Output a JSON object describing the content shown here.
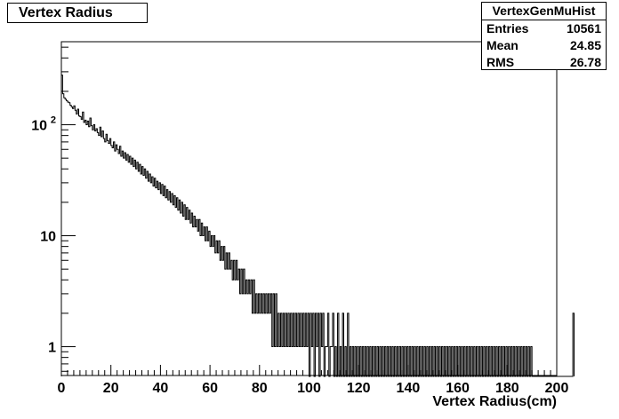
{
  "chart_data": {
    "type": "histogram",
    "title": "Vertex Radius",
    "xlabel": "Vertex Radius(cm)",
    "ylabel": "",
    "xlim": [
      0,
      200
    ],
    "ylim": [
      0.55,
      560
    ],
    "log_y": true,
    "grid": false,
    "x_ticks": [
      "0",
      "20",
      "40",
      "60",
      "80",
      "100",
      "120",
      "140",
      "160",
      "180",
      "200"
    ],
    "y_ticks": [
      {
        "value": 1,
        "label": "1"
      },
      {
        "value": 10,
        "label": "10"
      },
      {
        "value": 100,
        "label": "10",
        "exponent": "2"
      }
    ],
    "bin_width": 0.5,
    "bin_start": 0,
    "series": [
      {
        "values": [
          280,
          190,
          175,
          170,
          165,
          160,
          158,
          150,
          145,
          140,
          148,
          135,
          125,
          138,
          120,
          118,
          112,
          130,
          105,
          110,
          100,
          108,
          96,
          115,
          98,
          90,
          100,
          88,
          92,
          85,
          80,
          95,
          78,
          88,
          75,
          70,
          82,
          72,
          68,
          75,
          65,
          62,
          70,
          58,
          66,
          60,
          55,
          64,
          52,
          58,
          50,
          56,
          48,
          54,
          46,
          52,
          44,
          50,
          42,
          48,
          40,
          46,
          38,
          44,
          36,
          42,
          35,
          40,
          33,
          38,
          31,
          36,
          30,
          34,
          28,
          33,
          27,
          31,
          26,
          30,
          24,
          29,
          23,
          28,
          22,
          26,
          21,
          25,
          20,
          24,
          19,
          23,
          18,
          22,
          17,
          21,
          16,
          20,
          15,
          19,
          14,
          18,
          14,
          17,
          13,
          16,
          12,
          15,
          12,
          14,
          11,
          14,
          10,
          13,
          10,
          12,
          9,
          12,
          9,
          11,
          8,
          10,
          8,
          10,
          7,
          9,
          7,
          9,
          6,
          8,
          6,
          8,
          5,
          7,
          5,
          7,
          5,
          6,
          4,
          6,
          4,
          6,
          4,
          5,
          3,
          5,
          3,
          5,
          3,
          4,
          3,
          4,
          3,
          4,
          2,
          4,
          2,
          3,
          2,
          3,
          2,
          3,
          2,
          3,
          2,
          3,
          2,
          3,
          2,
          3,
          1,
          3,
          1,
          3,
          1,
          2,
          1,
          2,
          1,
          2,
          1,
          2,
          1,
          2,
          1,
          2,
          1,
          2,
          1,
          2,
          1,
          2,
          1,
          2,
          1,
          2,
          1,
          2,
          1,
          2,
          0,
          2,
          1,
          2,
          0,
          2,
          1,
          2,
          0,
          2,
          1,
          2,
          0,
          1,
          1,
          2,
          0,
          1,
          1,
          2,
          0,
          1,
          0,
          2,
          0,
          1,
          0,
          2,
          0,
          1,
          0,
          2,
          0,
          1,
          0,
          1,
          0,
          1,
          0,
          1,
          0,
          1,
          0,
          1,
          0,
          1,
          0,
          1,
          0,
          1,
          0,
          1,
          0,
          1,
          0,
          1,
          0,
          1,
          0,
          1,
          0,
          1,
          0,
          1,
          0,
          1,
          0,
          1,
          0,
          1,
          0,
          1,
          0,
          1,
          0,
          1,
          0,
          1,
          0,
          1,
          0,
          1,
          0,
          1,
          0,
          1,
          0,
          1,
          0,
          1,
          0,
          1,
          0,
          1,
          0,
          1,
          0,
          1,
          0,
          1,
          0,
          1,
          0,
          1,
          0,
          1,
          0,
          1,
          0,
          1,
          0,
          1,
          0,
          1,
          0,
          1,
          0,
          1,
          0,
          1,
          0,
          1,
          0,
          1,
          0,
          1,
          0,
          1,
          0,
          1,
          0,
          1,
          0,
          1,
          0,
          1,
          0,
          1,
          0,
          1,
          0,
          1,
          0,
          1,
          0,
          1,
          0,
          1,
          0,
          1,
          0,
          1,
          0,
          1,
          0,
          1,
          0,
          1,
          0,
          1,
          0,
          1,
          0,
          1,
          0,
          1,
          0,
          1,
          0,
          1,
          0,
          1,
          0,
          1,
          0,
          1,
          0,
          1,
          0,
          1,
          0,
          0,
          0,
          0,
          0,
          0,
          0,
          0,
          0,
          0,
          0,
          0,
          0,
          0,
          0,
          0,
          0,
          0,
          0,
          0,
          0,
          0,
          0,
          0,
          0,
          0,
          0,
          0,
          0,
          0,
          0,
          0,
          0,
          2
        ]
      }
    ]
  },
  "stats": {
    "name": "VertexGenMuHist",
    "rows": [
      {
        "label": "Entries",
        "value": "10561"
      },
      {
        "label": "Mean",
        "value": "24.85"
      },
      {
        "label": "RMS",
        "value": "26.78"
      }
    ]
  },
  "colors": {
    "line": "#000000",
    "background": "#ffffff"
  }
}
